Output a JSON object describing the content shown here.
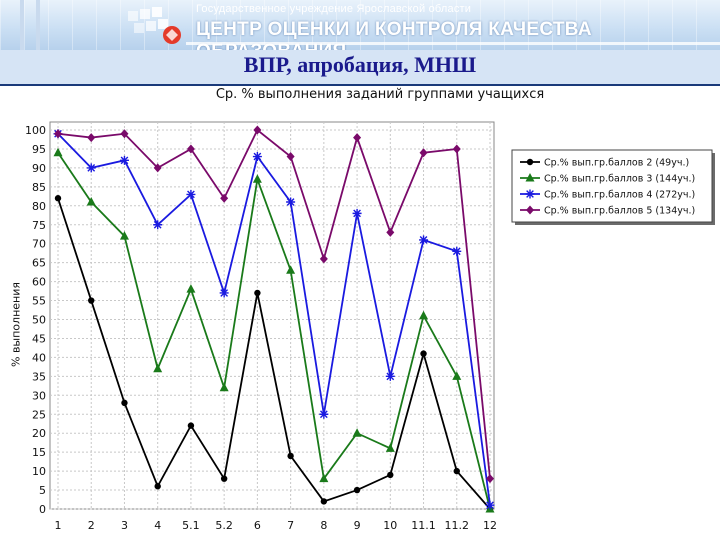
{
  "header": {
    "org_subtitle": "Государственное учреждение Ярославской области",
    "org_title": "ЦЕНТР ОЦЕНКИ И КОНТРОЛЯ КАЧЕСТВА ОБРАЗОВАНИЯ"
  },
  "page": {
    "title": "ВПР, апробация, МНШ"
  },
  "colors": {
    "banner": "#c9def3",
    "title_text": "#1a1a8c",
    "series": [
      "#000000",
      "#1a7a1a",
      "#1a1ae0",
      "#7a0a6a"
    ]
  },
  "chart_data": {
    "type": "line",
    "title": "Ср. % выполнения заданий группами учащихся",
    "xlabel": "",
    "ylabel": "% выполнения",
    "categories": [
      "1",
      "2",
      "3",
      "4",
      "5.1",
      "5.2",
      "6",
      "7",
      "8",
      "9",
      "10",
      "11.1",
      "11.2",
      "12"
    ],
    "ylim": [
      0,
      100
    ],
    "yticks": [
      0,
      5,
      10,
      15,
      20,
      25,
      30,
      35,
      40,
      45,
      50,
      55,
      60,
      65,
      70,
      75,
      80,
      85,
      90,
      95,
      100
    ],
    "grid": true,
    "legend_position": "top-right",
    "series": [
      {
        "name": "Ср.% вып.гр.баллов 2 (49уч.)",
        "marker": "circle",
        "values": [
          82,
          55,
          28,
          6,
          22,
          8,
          57,
          14,
          2,
          5,
          9,
          41,
          10,
          0
        ]
      },
      {
        "name": "Ср.% вып.гр.баллов 3 (144уч.)",
        "marker": "triangle",
        "values": [
          94,
          81,
          72,
          37,
          58,
          32,
          87,
          63,
          8,
          20,
          16,
          51,
          35,
          0
        ]
      },
      {
        "name": "Ср.% вып.гр.баллов 4 (272уч.)",
        "marker": "asterisk",
        "values": [
          99,
          90,
          92,
          75,
          83,
          57,
          93,
          81,
          25,
          78,
          35,
          71,
          68,
          1
        ]
      },
      {
        "name": "Ср.% вып.гр.баллов 5 (134уч.)",
        "marker": "diamond",
        "values": [
          99,
          98,
          99,
          90,
          95,
          82,
          100,
          93,
          66,
          98,
          73,
          94,
          95,
          8
        ]
      }
    ]
  }
}
